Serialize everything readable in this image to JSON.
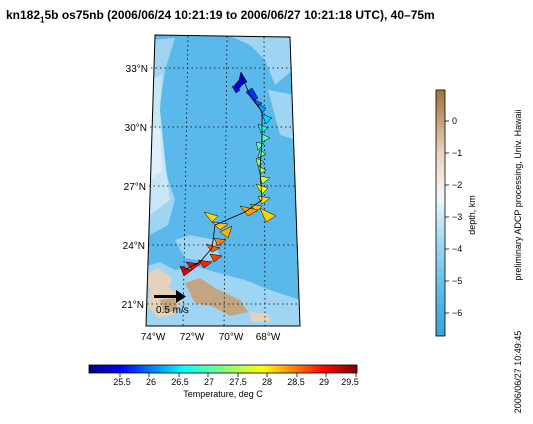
{
  "title": {
    "prefix": "kn182",
    "subscript": "1",
    "rest": "5b os75nb (2006/06/24 10:21:19 to 2006/06/27 10:21:18 UTC), 40–75m"
  },
  "map": {
    "lat_ticks": [
      "33°N",
      "30°N",
      "27°N",
      "24°N",
      "21°N"
    ],
    "lon_ticks": [
      "74°W",
      "72°W",
      "70°W",
      "68°W"
    ],
    "scale_label": "0.5 m/s",
    "colors": {
      "deep": "#5bb8ea",
      "mid": "#9fd4f2",
      "shallow": "#d6eefb",
      "land": "#c4a581",
      "land_light": "#e6d2bb"
    }
  },
  "depth_colorbar": {
    "label": "depth, km",
    "ticks": [
      "0",
      "−1",
      "−2",
      "−3",
      "−4",
      "−5",
      "−6"
    ]
  },
  "temp_colorbar": {
    "label": "Temperature, deg C",
    "ticks": [
      "25.5",
      "26",
      "26.5",
      "27",
      "27.5",
      "28",
      "28.5",
      "29",
      "29.5"
    ]
  },
  "side_note": "preliminary ADCP processing,  Univ. Hawaii",
  "timestamp": "2006/06/27 10:49:45"
}
